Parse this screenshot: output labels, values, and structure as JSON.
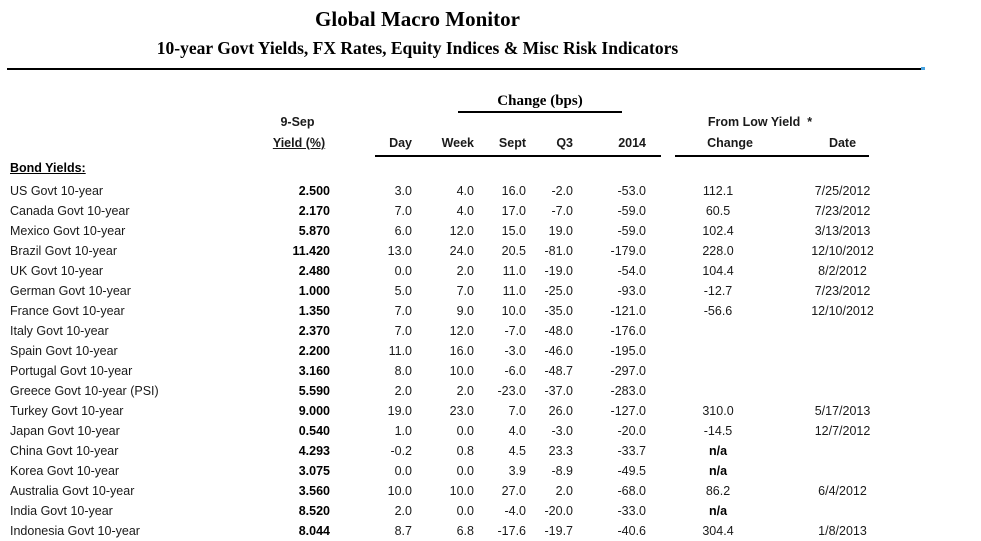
{
  "header": {
    "title": "Global Macro Monitor",
    "subtitle": "10-year Govt Yields, FX Rates, Equity Indices & Misc Risk Indicators"
  },
  "table": {
    "group_headers": {
      "change_bps": "Change (bps)",
      "as_of": "9-Sep",
      "from_low_yield": "From Low Yield  *"
    },
    "columns": {
      "yield": "Yield (%)",
      "day": "Day",
      "week": "Week",
      "sept": "Sept",
      "q3": "Q3",
      "y2014": "2014",
      "low_change": "Change",
      "low_date": "Date"
    },
    "section_label": "Bond Yields:",
    "rows": [
      {
        "label": "US Govt 10-year",
        "yield": "2.500",
        "day": "3.0",
        "week": "4.0",
        "sept": "16.0",
        "q3": "-2.0",
        "y2014": "-53.0",
        "low_change": "112.1",
        "low_date": "7/25/2012"
      },
      {
        "label": "Canada Govt 10-year",
        "yield": "2.170",
        "day": "7.0",
        "week": "4.0",
        "sept": "17.0",
        "q3": "-7.0",
        "y2014": "-59.0",
        "low_change": "60.5",
        "low_date": "7/23/2012"
      },
      {
        "label": "Mexico Govt 10-year",
        "yield": "5.870",
        "day": "6.0",
        "week": "12.0",
        "sept": "15.0",
        "q3": "19.0",
        "y2014": "-59.0",
        "low_change": "102.4",
        "low_date": "3/13/2013"
      },
      {
        "label": "Brazil Govt 10-year",
        "yield": "11.420",
        "day": "13.0",
        "week": "24.0",
        "sept": "20.5",
        "q3": "-81.0",
        "y2014": "-179.0",
        "low_change": "228.0",
        "low_date": "12/10/2012"
      },
      {
        "label": "UK Govt 10-year",
        "yield": "2.480",
        "day": "0.0",
        "week": "2.0",
        "sept": "11.0",
        "q3": "-19.0",
        "y2014": "-54.0",
        "low_change": "104.4",
        "low_date": "8/2/2012"
      },
      {
        "label": "German Govt 10-year",
        "yield": "1.000",
        "day": "5.0",
        "week": "7.0",
        "sept": "11.0",
        "q3": "-25.0",
        "y2014": "-93.0",
        "low_change": "-12.7",
        "low_date": "7/23/2012"
      },
      {
        "label": "France Govt 10-year",
        "yield": "1.350",
        "day": "7.0",
        "week": "9.0",
        "sept": "10.0",
        "q3": "-35.0",
        "y2014": "-121.0",
        "low_change": "-56.6",
        "low_date": "12/10/2012"
      },
      {
        "label": "Italy Govt 10-year",
        "yield": "2.370",
        "day": "7.0",
        "week": "12.0",
        "sept": "-7.0",
        "q3": "-48.0",
        "y2014": "-176.0",
        "low_change": "",
        "low_date": ""
      },
      {
        "label": "Spain Govt 10-year",
        "yield": "2.200",
        "day": "11.0",
        "week": "16.0",
        "sept": "-3.0",
        "q3": "-46.0",
        "y2014": "-195.0",
        "low_change": "",
        "low_date": ""
      },
      {
        "label": "Portugal Govt 10-year",
        "yield": "3.160",
        "day": "8.0",
        "week": "10.0",
        "sept": "-6.0",
        "q3": "-48.7",
        "y2014": "-297.0",
        "low_change": "",
        "low_date": ""
      },
      {
        "label": "Greece Govt 10-year (PSI)",
        "yield": "5.590",
        "day": "2.0",
        "week": "2.0",
        "sept": "-23.0",
        "q3": "-37.0",
        "y2014": "-283.0",
        "low_change": "",
        "low_date": ""
      },
      {
        "label": "Turkey Govt 10-year",
        "yield": "9.000",
        "day": "19.0",
        "week": "23.0",
        "sept": "7.0",
        "q3": "26.0",
        "y2014": "-127.0",
        "low_change": "310.0",
        "low_date": "5/17/2013"
      },
      {
        "label": "Japan Govt 10-year",
        "yield": "0.540",
        "day": "1.0",
        "week": "0.0",
        "sept": "4.0",
        "q3": "-3.0",
        "y2014": "-20.0",
        "low_change": "-14.5",
        "low_date": "12/7/2012"
      },
      {
        "label": "China Govt 10-year",
        "yield": "4.293",
        "day": "-0.2",
        "week": "0.8",
        "sept": "4.5",
        "q3": "23.3",
        "y2014": "-33.7",
        "low_change": "n/a",
        "low_date": ""
      },
      {
        "label": "Korea Govt 10-year",
        "yield": "3.075",
        "day": "0.0",
        "week": "0.0",
        "sept": "3.9",
        "q3": "-8.9",
        "y2014": "-49.5",
        "low_change": "n/a",
        "low_date": ""
      },
      {
        "label": "Australia Govt 10-year",
        "yield": "3.560",
        "day": "10.0",
        "week": "10.0",
        "sept": "27.0",
        "q3": "2.0",
        "y2014": "-68.0",
        "low_change": "86.2",
        "low_date": "6/4/2012"
      },
      {
        "label": "India Govt 10-year",
        "yield": "8.520",
        "day": "2.0",
        "week": "0.0",
        "sept": "-4.0",
        "q3": "-20.0",
        "y2014": "-33.0",
        "low_change": "n/a",
        "low_date": ""
      },
      {
        "label": "Indonesia Govt 10-year",
        "yield": "8.044",
        "day": "8.7",
        "week": "6.8",
        "sept": "-17.6",
        "q3": "-19.7",
        "y2014": "-40.6",
        "low_change": "304.4",
        "low_date": "1/8/2013"
      }
    ]
  }
}
